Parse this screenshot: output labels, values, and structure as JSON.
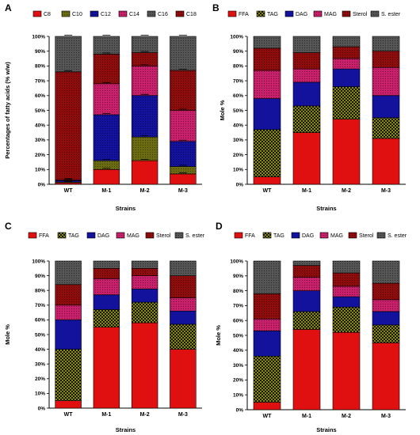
{
  "colors": {
    "C8": "#e01010",
    "C10": "#6b6b10",
    "C12": "#12129c",
    "C14": "#c8206a",
    "C16": "#555555",
    "C18": "#8e0c0c",
    "FFA": "#e01010",
    "TAG": "#8a8a14",
    "DAG": "#12129c",
    "MAG": "#c8206a",
    "Sterol": "#8e0c0c",
    "S. ester": "#555555"
  },
  "chart_data": [
    {
      "panel": "A",
      "type": "bar",
      "stacked": true,
      "xlabel": "Strains",
      "ylabel": "Percentages of fatty acids (% w/w)",
      "ylim": [
        0,
        100
      ],
      "yticks": [
        "0%",
        "10%",
        "20%",
        "30%",
        "40%",
        "50%",
        "60%",
        "70%",
        "80%",
        "90%",
        "100%"
      ],
      "legend_position": "top",
      "categories": [
        "WT",
        "M-1",
        "M-2",
        "M-3"
      ],
      "series": [
        {
          "name": "C8",
          "values": [
            1,
            10,
            16,
            7
          ]
        },
        {
          "name": "C10",
          "values": [
            0.5,
            6,
            16,
            5
          ]
        },
        {
          "name": "C12",
          "values": [
            1,
            31,
            28,
            17
          ]
        },
        {
          "name": "C14",
          "values": [
            0.5,
            21,
            20,
            21
          ]
        },
        {
          "name": "C18",
          "values": [
            73,
            20,
            9,
            27
          ]
        },
        {
          "name": "C16",
          "values": [
            24,
            12,
            11,
            23
          ]
        }
      ],
      "errors_at_top": [
        3,
        90,
        64,
        78
      ]
    },
    {
      "panel": "B",
      "type": "bar",
      "stacked": true,
      "xlabel": "Strains",
      "ylabel": "Mole %",
      "ylim": [
        0,
        100
      ],
      "yticks": [
        "0%",
        "10%",
        "20%",
        "30%",
        "40%",
        "50%",
        "60%",
        "70%",
        "80%",
        "90%",
        "100%"
      ],
      "legend_position": "top",
      "categories": [
        "WT",
        "M-1",
        "M-2",
        "M-3"
      ],
      "series": [
        {
          "name": "FFA",
          "values": [
            5,
            35,
            44,
            31
          ]
        },
        {
          "name": "TAG",
          "values": [
            32,
            18,
            22,
            14
          ]
        },
        {
          "name": "DAG",
          "values": [
            21,
            16,
            12,
            15
          ]
        },
        {
          "name": "MAG",
          "values": [
            19,
            9,
            7,
            19
          ]
        },
        {
          "name": "Sterol",
          "values": [
            15,
            11,
            8,
            11
          ]
        },
        {
          "name": "S. ester",
          "values": [
            8,
            11,
            7,
            10
          ]
        }
      ]
    },
    {
      "panel": "C",
      "type": "bar",
      "stacked": true,
      "xlabel": "Strains",
      "ylabel": "Mole %",
      "ylim": [
        0,
        100
      ],
      "yticks": [
        "0%",
        "10%",
        "20%",
        "30%",
        "40%",
        "50%",
        "60%",
        "70%",
        "80%",
        "90%",
        "100%"
      ],
      "legend_position": "top",
      "categories": [
        "WT",
        "M-1",
        "M-2",
        "M-3"
      ],
      "series": [
        {
          "name": "FFA",
          "values": [
            5,
            55,
            58,
            40
          ]
        },
        {
          "name": "TAG",
          "values": [
            35,
            12,
            14,
            17
          ]
        },
        {
          "name": "DAG",
          "values": [
            20,
            10,
            9,
            9
          ]
        },
        {
          "name": "MAG",
          "values": [
            10,
            11,
            9,
            9
          ]
        },
        {
          "name": "Sterol",
          "values": [
            14,
            7,
            5,
            15
          ]
        },
        {
          "name": "S. ester",
          "values": [
            16,
            5,
            5,
            10
          ]
        }
      ]
    },
    {
      "panel": "D",
      "type": "bar",
      "stacked": true,
      "xlabel": "Strains",
      "ylabel": "Mole %",
      "ylim": [
        0,
        100
      ],
      "yticks": [
        "0%",
        "10%",
        "20%",
        "30%",
        "40%",
        "50%",
        "60%",
        "70%",
        "80%",
        "90%",
        "100%"
      ],
      "legend_position": "top",
      "categories": [
        "WT",
        "M-1",
        "M-2",
        "M-3"
      ],
      "series": [
        {
          "name": "FFA",
          "values": [
            5,
            54,
            52,
            45
          ]
        },
        {
          "name": "TAG",
          "values": [
            31,
            12,
            17,
            12
          ]
        },
        {
          "name": "DAG",
          "values": [
            17,
            14,
            7,
            9
          ]
        },
        {
          "name": "MAG",
          "values": [
            8,
            9,
            7,
            8
          ]
        },
        {
          "name": "Sterol",
          "values": [
            17,
            8,
            9,
            11
          ]
        },
        {
          "name": "S. ester",
          "values": [
            22,
            3,
            8,
            15
          ]
        }
      ]
    }
  ]
}
